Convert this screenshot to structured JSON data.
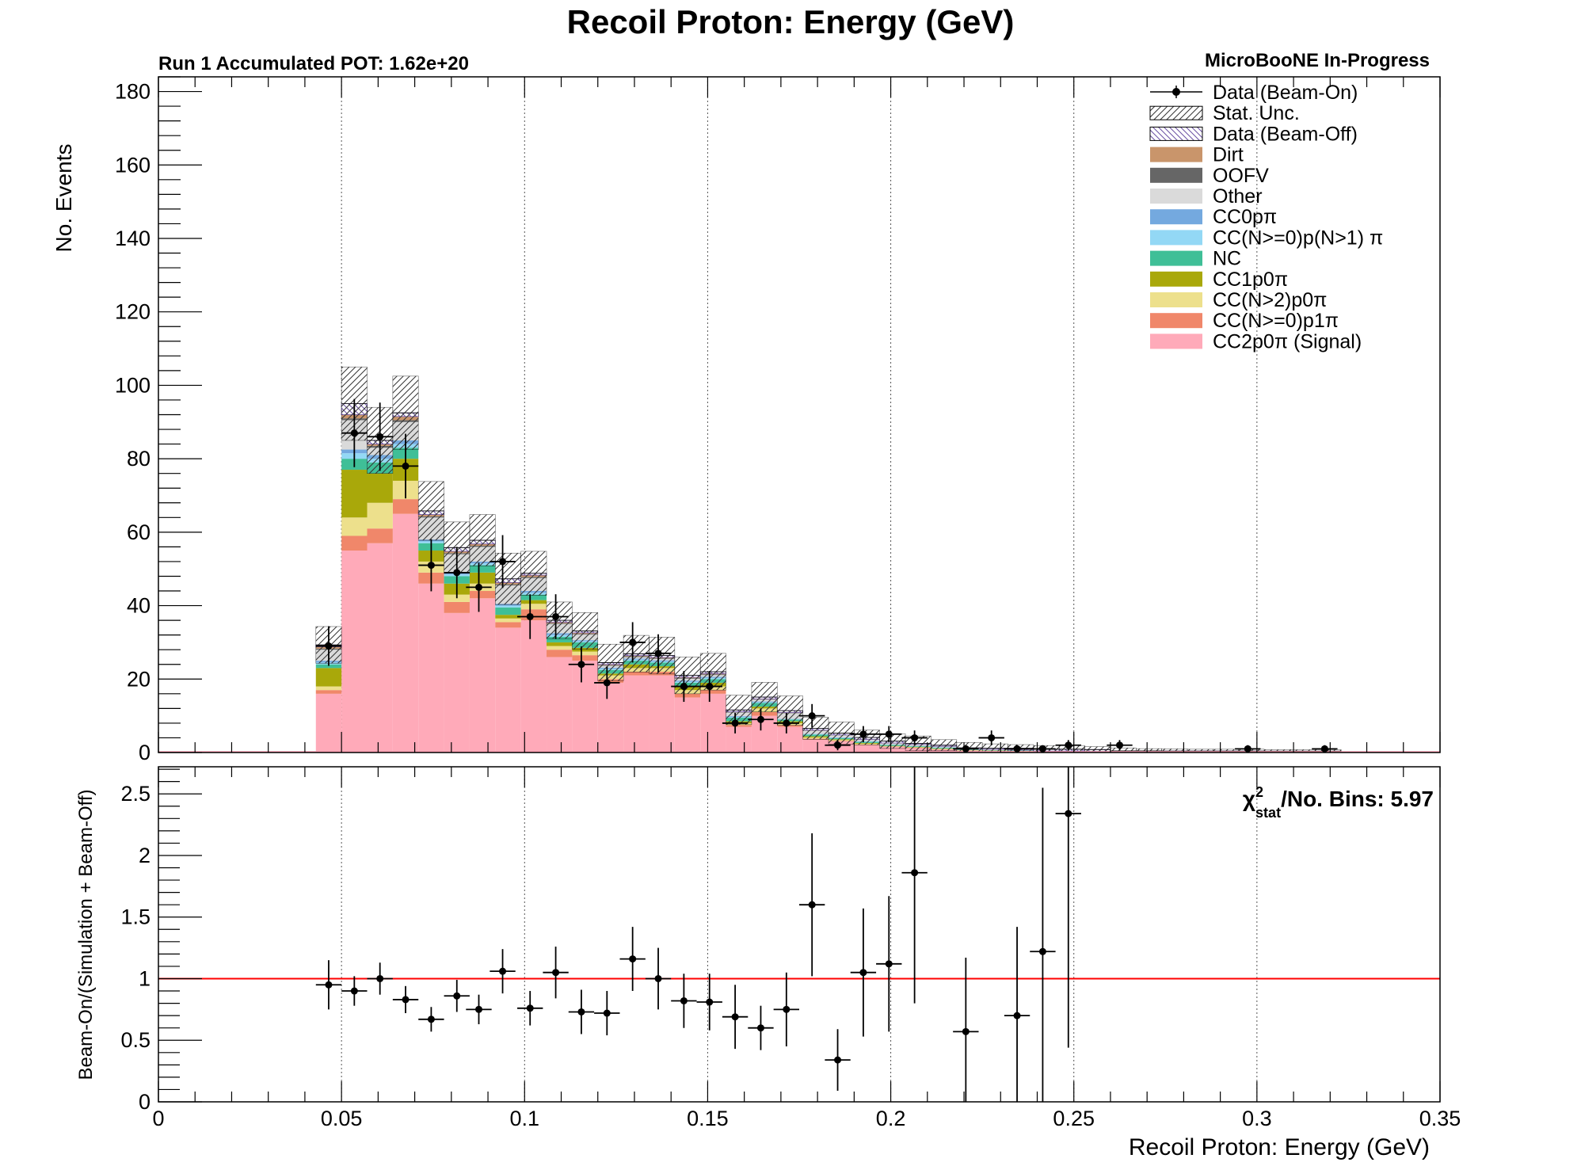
{
  "title": "Recoil Proton: Energy (GeV)",
  "pot_label": "Run 1 Accumulated POT: 1.62e+20",
  "experiment_label": "MicroBooNE In-Progress",
  "chi2_label": {
    "prefix": "χ",
    "sup": "2",
    "sub": "stat",
    "suffix": "/No. Bins: 5.97"
  },
  "chart_data": [
    {
      "type": "bar",
      "stacked": true,
      "xlabel": "Recoil Proton: Energy (GeV)",
      "ylabel": "No. Events",
      "xlim": [
        0,
        0.35
      ],
      "ylim": [
        0,
        184
      ],
      "x_ticks": [
        0,
        0.05,
        0.1,
        0.15,
        0.2,
        0.25,
        0.3,
        0.35
      ],
      "x_tick_labels": [
        "0",
        "0.05",
        "0.1",
        "0.15",
        "0.2",
        "0.25",
        "0.3",
        "0.35"
      ],
      "y_ticks": [
        0,
        20,
        40,
        60,
        80,
        100,
        120,
        140,
        160,
        180
      ],
      "y_tick_labels": [
        "0",
        "20",
        "40",
        "60",
        "80",
        "100",
        "120",
        "140",
        "160",
        "180"
      ],
      "grid": "x-dotted",
      "legend_position": "top-right",
      "bin_edges": [
        0.043,
        0.05,
        0.057,
        0.064,
        0.071,
        0.078,
        0.085,
        0.092,
        0.099,
        0.106,
        0.113,
        0.12,
        0.127,
        0.134,
        0.141,
        0.148,
        0.155,
        0.162,
        0.169,
        0.176,
        0.183,
        0.19,
        0.197,
        0.204,
        0.211,
        0.218,
        0.225,
        0.232,
        0.239,
        0.246,
        0.253,
        0.26,
        0.267,
        0.274,
        0.281,
        0.288,
        0.295,
        0.302,
        0.309,
        0.316,
        0.323
      ],
      "series": [
        {
          "name": "CC2p0π (Signal)",
          "color": "#ffaab9",
          "values": [
            16,
            55,
            57,
            65,
            46,
            38,
            42,
            34,
            36,
            26,
            25,
            19,
            21,
            21,
            15,
            16,
            7,
            10,
            7,
            3.5,
            3,
            2,
            1.5,
            1.2,
            0.8,
            0.5,
            0.4,
            0.3,
            0.2,
            0.2,
            0.15,
            0.1,
            0.1,
            0.05,
            0.05,
            0.05,
            0.05,
            0.02,
            0.02,
            0.02
          ]
        },
        {
          "name": "CC(N>=0)p1π",
          "color": "#f0876a",
          "values": [
            1,
            4,
            4,
            4,
            3,
            3,
            2,
            1.5,
            3,
            2,
            1.5,
            1,
            1,
            1,
            1,
            1,
            0.5,
            1,
            0.5,
            0.3,
            0.2,
            0.2,
            0.1,
            0.1,
            0.1,
            0.05,
            0.05,
            0.05,
            0.05,
            0.05,
            0,
            0,
            0,
            0,
            0,
            0,
            0,
            0,
            0,
            0
          ]
        },
        {
          "name": "CC(N>2)p0π",
          "color": "#ede08c",
          "values": [
            1,
            5,
            7,
            5,
            3,
            2,
            2,
            1,
            1.5,
            1,
            1,
            1,
            1,
            1,
            1,
            1,
            0.5,
            1,
            0.5,
            0.3,
            0.2,
            0.2,
            0.1,
            0.1,
            0.1,
            0.05,
            0.05,
            0.05,
            0,
            0,
            0,
            0,
            0,
            0,
            0,
            0,
            0,
            0,
            0,
            0
          ]
        },
        {
          "name": "CC1p0π",
          "color": "#a9a80a",
          "values": [
            5,
            13,
            8,
            6,
            3,
            3,
            3,
            1,
            1,
            1,
            1,
            0.5,
            1,
            0.5,
            1,
            1,
            0.5,
            0.5,
            0.5,
            0.3,
            0.2,
            0.2,
            0.1,
            0.1,
            0.1,
            0.05,
            0.05,
            0.05,
            0,
            0,
            0,
            0,
            0,
            0,
            0,
            0,
            0,
            0,
            0,
            0
          ]
        },
        {
          "name": "NC",
          "color": "#3fbf97",
          "values": [
            1,
            3,
            3,
            3,
            2,
            2,
            2,
            2,
            1.5,
            1.5,
            1.5,
            1,
            1,
            1,
            1,
            1,
            1,
            1,
            0.5,
            0.5,
            0.3,
            0.3,
            0.3,
            0.2,
            0.2,
            0.1,
            0.1,
            0.1,
            0.05,
            0.05,
            0.05,
            0,
            0,
            0,
            0,
            0,
            0,
            0,
            0,
            0
          ]
        },
        {
          "name": "CC(N>=0)p(N>1) π",
          "color": "#93d8f5",
          "values": [
            0.5,
            1.5,
            1,
            1,
            0.5,
            0.5,
            0.5,
            0.5,
            0.5,
            0.5,
            0.3,
            0.3,
            0.3,
            0.3,
            0.3,
            0.3,
            0.2,
            0.2,
            0.1,
            0.1,
            0.1,
            0.1,
            0.05,
            0.05,
            0.05,
            0,
            0,
            0,
            0,
            0,
            0,
            0,
            0,
            0,
            0,
            0,
            0,
            0,
            0,
            0
          ]
        },
        {
          "name": "CC0pπ",
          "color": "#74a9df",
          "values": [
            0.5,
            1,
            1,
            1,
            0.5,
            0.5,
            0.5,
            0.5,
            0.5,
            0.5,
            0.3,
            0.3,
            0.3,
            0.3,
            0.3,
            0.3,
            0.2,
            0.2,
            0.1,
            0.1,
            0.1,
            0.1,
            0.05,
            0.05,
            0.05,
            0,
            0,
            0,
            0,
            0,
            0,
            0,
            0,
            0,
            0,
            0,
            0,
            0,
            0,
            0
          ]
        },
        {
          "name": "Other",
          "color": "#dadada",
          "values": [
            3,
            8,
            2,
            5,
            6,
            5,
            4,
            5,
            3.5,
            2.5,
            1.5,
            0.5,
            0.4,
            0.4,
            0.5,
            0.5,
            1,
            0.5,
            1.5,
            0.8,
            0.6,
            0.4,
            0.3,
            0.3,
            0.2,
            0.2,
            0.2,
            0.1,
            0.1,
            0.1,
            0.1,
            0.05,
            0.05,
            0.05,
            0.05,
            0.05,
            0.05,
            0.05,
            0.05,
            0.05
          ]
        },
        {
          "name": "OOFV",
          "color": "#666666",
          "values": [
            0.3,
            0.5,
            0.5,
            0.5,
            0.3,
            0.3,
            0.3,
            0.3,
            0.3,
            0.2,
            0.2,
            0.2,
            0.2,
            0.2,
            0.2,
            0.2,
            0.1,
            0.1,
            0.1,
            0.1,
            0.05,
            0.05,
            0.05,
            0.05,
            0.05,
            0,
            0,
            0,
            0,
            0,
            0,
            0,
            0,
            0,
            0,
            0,
            0,
            0,
            0,
            0
          ]
        },
        {
          "name": "Dirt",
          "color": "#c9956b",
          "values": [
            0.5,
            1,
            0.5,
            1,
            0.5,
            0.5,
            0.5,
            0.5,
            0.5,
            0.3,
            0.3,
            0.2,
            0.2,
            0.2,
            0.2,
            0.2,
            0.1,
            0.1,
            0.1,
            0.1,
            0.05,
            0.05,
            0.05,
            0.05,
            0.05,
            0,
            0,
            0,
            0,
            0,
            0,
            0,
            0,
            0,
            0,
            0,
            0,
            0,
            0,
            0
          ]
        },
        {
          "name": "Data (Beam-Off)",
          "color": "#9a7fc4",
          "values": [
            0.5,
            3,
            1,
            1,
            1,
            1,
            1,
            1,
            0.5,
            0.5,
            0.5,
            0.5,
            0.5,
            0.5,
            0.5,
            0.5,
            0.5,
            0.5,
            0.5,
            0.5,
            0.5,
            0.5,
            0.5,
            0.3,
            0.3,
            0.3,
            0.3,
            0.5,
            0.5,
            0.5,
            0.5,
            0.3,
            0.3,
            0.3,
            0.3,
            0.3,
            0.3,
            0.3,
            0.3,
            0.3
          ]
        }
      ],
      "stat_unc": [
        5,
        10,
        9,
        10,
        8,
        7,
        7,
        7,
        6,
        5,
        5,
        5,
        5,
        5,
        5,
        5,
        4,
        4,
        4,
        3,
        3,
        2,
        2,
        2,
        1.5,
        1.5,
        1.2,
        1,
        1,
        1,
        0.8,
        0.8,
        0.6,
        0.6,
        0.5,
        0.5,
        0.5,
        0.4,
        0.4,
        0.4
      ],
      "data_points": {
        "name": "Data (Beam-On)",
        "x": [
          0.0465,
          0.0535,
          0.0605,
          0.0675,
          0.0745,
          0.0815,
          0.0875,
          0.094,
          0.1015,
          0.1085,
          0.1155,
          0.1225,
          0.1295,
          0.1365,
          0.1435,
          0.1505,
          0.1575,
          0.1645,
          0.1715,
          0.1785,
          0.1855,
          0.1925,
          0.1995,
          0.2065,
          0.2205,
          0.2275,
          0.2345,
          0.2415,
          0.2485,
          0.2625,
          0.2975,
          0.3185
        ],
        "y": [
          29,
          87,
          86,
          78,
          51,
          49,
          45,
          52,
          37,
          37,
          24,
          19,
          30,
          27,
          18,
          18,
          8,
          9,
          8,
          10,
          2,
          5,
          5,
          4,
          1,
          4,
          1,
          1,
          2,
          2,
          1,
          1
        ],
        "yerr": [
          5.4,
          9.3,
          9.3,
          8.8,
          7.1,
          7.0,
          6.7,
          7.2,
          6.1,
          6.1,
          4.9,
          4.4,
          5.5,
          5.2,
          4.2,
          4.2,
          2.8,
          3.0,
          2.8,
          3.2,
          1.4,
          2.2,
          2.2,
          2.0,
          1.0,
          2.0,
          1.0,
          1.0,
          1.4,
          1.4,
          1.0,
          1.0
        ]
      }
    },
    {
      "type": "scatter",
      "xlabel": "Recoil Proton: Energy (GeV)",
      "ylabel": "Beam-On/(Simulation + Beam-Off)",
      "xlim": [
        0,
        0.35
      ],
      "ylim": [
        0,
        2.72
      ],
      "y_ticks": [
        0,
        0.5,
        1,
        1.5,
        2,
        2.5
      ],
      "y_tick_labels": [
        "0",
        "0.5",
        "1",
        "1.5",
        "2",
        "2.5"
      ],
      "reference_line": {
        "y": 1,
        "color": "#ff0000"
      },
      "points": {
        "x": [
          0.0465,
          0.0535,
          0.0605,
          0.0675,
          0.0745,
          0.0815,
          0.0875,
          0.094,
          0.1015,
          0.1085,
          0.1155,
          0.1225,
          0.1295,
          0.1365,
          0.1435,
          0.1505,
          0.1575,
          0.1645,
          0.1715,
          0.1785,
          0.1855,
          0.1925,
          0.1995,
          0.2065,
          0.2205,
          0.2345,
          0.2415,
          0.2485
        ],
        "y": [
          0.95,
          0.9,
          1.0,
          0.83,
          0.67,
          0.86,
          0.75,
          1.06,
          0.76,
          1.05,
          0.73,
          0.72,
          1.16,
          1.0,
          0.82,
          0.81,
          0.69,
          0.6,
          0.75,
          1.6,
          0.34,
          1.05,
          1.12,
          1.86,
          0.57,
          0.7,
          1.22,
          2.34
        ],
        "yerr": [
          0.2,
          0.12,
          0.13,
          0.11,
          0.1,
          0.13,
          0.12,
          0.18,
          0.14,
          0.21,
          0.18,
          0.18,
          0.26,
          0.25,
          0.22,
          0.23,
          0.26,
          0.18,
          0.3,
          0.58,
          0.25,
          0.52,
          0.55,
          1.06,
          0.6,
          0.72,
          1.33,
          1.9
        ]
      }
    }
  ]
}
